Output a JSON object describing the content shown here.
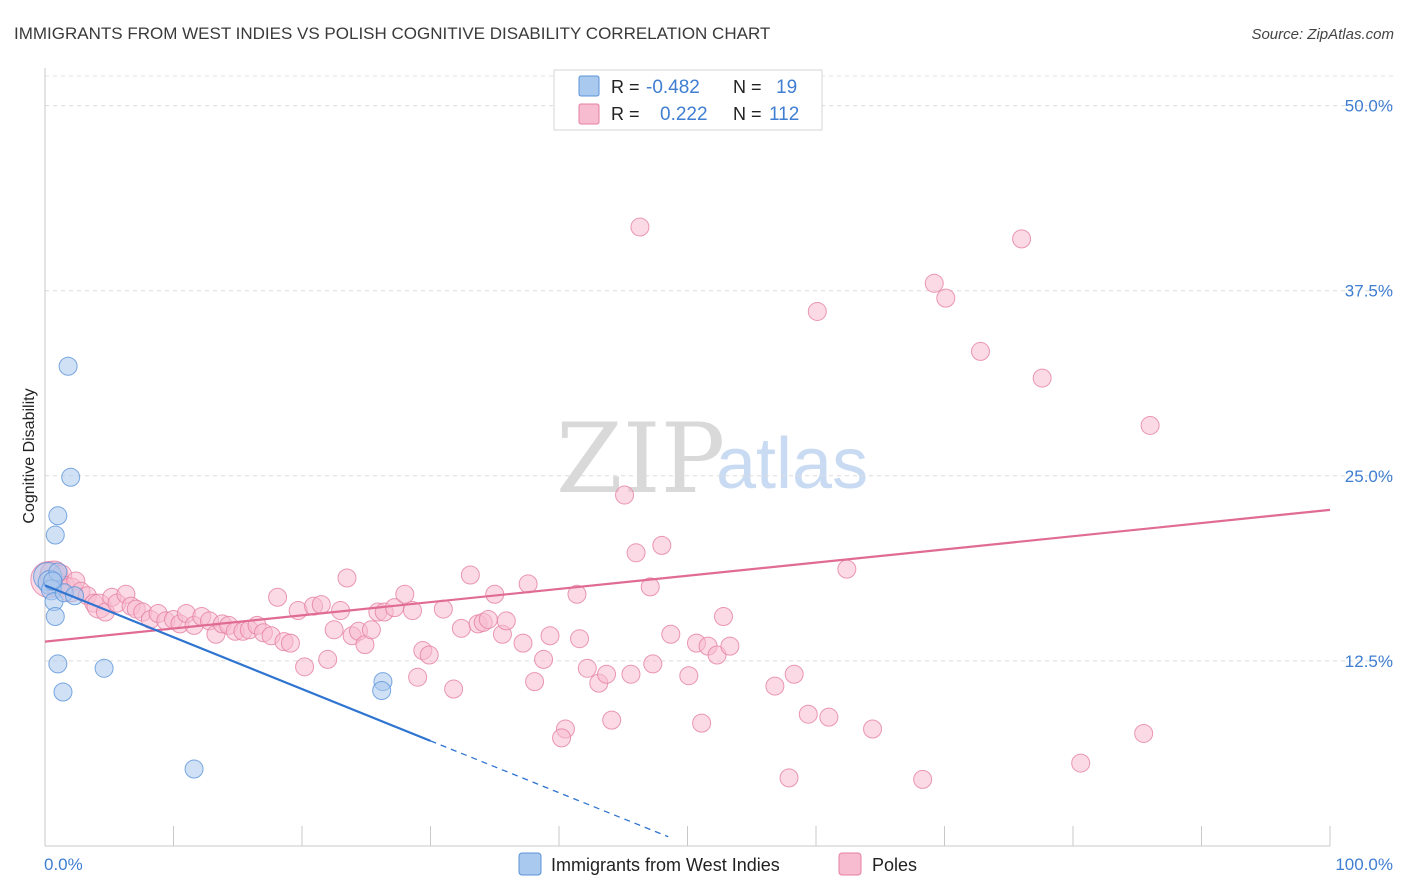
{
  "title": "IMMIGRANTS FROM WEST INDIES VS POLISH COGNITIVE DISABILITY CORRELATION CHART",
  "source": "Source: ZipAtlas.com",
  "watermark": {
    "zip": "ZIP",
    "atlas": "atlas"
  },
  "legend": {
    "rows": [
      {
        "r_label": "R =",
        "r_value": "-0.482",
        "n_label": "N =",
        "n_value": "19",
        "color": "#a9c9ef",
        "stroke": "#5b93d9"
      },
      {
        "r_label": "R =",
        "r_value": "0.222",
        "n_label": "N =",
        "n_value": "112",
        "color": "#f7bcd0",
        "stroke": "#e57fa3"
      }
    ]
  },
  "bottom_legend": {
    "items": [
      {
        "label": "Immigrants from West Indies",
        "color": "#a9c9ef",
        "stroke": "#5b93d9"
      },
      {
        "label": "Poles",
        "color": "#f7bcd0",
        "stroke": "#e57fa3"
      }
    ]
  },
  "chart_data": {
    "type": "scatter",
    "title": "IMMIGRANTS FROM WEST INDIES VS POLISH COGNITIVE DISABILITY CORRELATION CHART",
    "xlabel": "",
    "ylabel": "Cognitive Disability",
    "xlim": [
      0,
      100
    ],
    "ylim": [
      0,
      52
    ],
    "x_ticks_labels": [
      "0.0%",
      "100.0%"
    ],
    "y_ticks": [
      12.5,
      25.0,
      37.5,
      50.0
    ],
    "y_ticks_labels": [
      "12.5%",
      "25.0%",
      "37.5%",
      "50.0%"
    ],
    "grid": true,
    "colors": {
      "west_indies": "#5b93d9",
      "poles": "#e57fa3",
      "west_indies_line": "#2f74d0",
      "poles_line": "#e06b95"
    },
    "series": [
      {
        "name": "Immigrants from West Indies",
        "trend": {
          "x0": 0.0,
          "y0": 17.6,
          "x1": 30.0,
          "y1": 7.1,
          "dash_to_x": 48.5
        },
        "points": [
          [
            0.2,
            18.2,
            14
          ],
          [
            0.4,
            17.8,
            12
          ],
          [
            0.5,
            17.3,
            10
          ],
          [
            0.7,
            16.5,
            9
          ],
          [
            0.8,
            15.5,
            9
          ],
          [
            0.8,
            21.0,
            9
          ],
          [
            1.0,
            22.3,
            9
          ],
          [
            1.0,
            12.3,
            9
          ],
          [
            1.4,
            10.4,
            9
          ],
          [
            1.8,
            32.4,
            9
          ],
          [
            2.0,
            24.9,
            9
          ],
          [
            1.5,
            17.1,
            9
          ],
          [
            2.3,
            16.9,
            9
          ],
          [
            4.6,
            12.0,
            9
          ],
          [
            11.6,
            5.2,
            9
          ],
          [
            26.3,
            11.1,
            9
          ],
          [
            26.2,
            10.5,
            9
          ],
          [
            1.0,
            18.5,
            9
          ],
          [
            0.6,
            17.9,
            9
          ]
        ]
      },
      {
        "name": "Poles",
        "trend": {
          "x0": 0.0,
          "y0": 13.8,
          "x1": 100.0,
          "y1": 22.7
        },
        "points": [
          [
            0.3,
            18.0,
            18
          ],
          [
            0.7,
            18.3,
            14
          ],
          [
            1.0,
            17.6,
            12
          ],
          [
            1.3,
            18.3,
            10
          ],
          [
            1.6,
            17.6,
            9
          ],
          [
            2.0,
            17.3,
            12
          ],
          [
            2.4,
            17.9,
            9
          ],
          [
            2.8,
            17.2,
            9
          ],
          [
            3.3,
            16.9,
            9
          ],
          [
            3.8,
            16.4,
            9
          ],
          [
            4.2,
            16.2,
            12
          ],
          [
            4.7,
            15.8,
            9
          ],
          [
            5.2,
            16.8,
            9
          ],
          [
            5.6,
            16.4,
            9
          ],
          [
            6.3,
            17.0,
            9
          ],
          [
            6.7,
            16.2,
            9
          ],
          [
            7.1,
            16.0,
            9
          ],
          [
            7.6,
            15.8,
            9
          ],
          [
            8.2,
            15.3,
            9
          ],
          [
            8.8,
            15.7,
            9
          ],
          [
            9.4,
            15.2,
            9
          ],
          [
            10.0,
            15.3,
            9
          ],
          [
            10.5,
            15.0,
            9
          ],
          [
            11.0,
            15.7,
            9
          ],
          [
            11.6,
            14.9,
            9
          ],
          [
            12.2,
            15.5,
            9
          ],
          [
            12.8,
            15.2,
            9
          ],
          [
            13.3,
            14.3,
            9
          ],
          [
            13.8,
            15.0,
            9
          ],
          [
            14.3,
            14.9,
            9
          ],
          [
            14.8,
            14.5,
            9
          ],
          [
            15.4,
            14.5,
            9
          ],
          [
            15.9,
            14.6,
            9
          ],
          [
            16.5,
            14.9,
            9
          ],
          [
            17.0,
            14.4,
            9
          ],
          [
            17.6,
            14.2,
            9
          ],
          [
            18.1,
            16.8,
            9
          ],
          [
            18.6,
            13.8,
            9
          ],
          [
            19.1,
            13.7,
            9
          ],
          [
            19.7,
            15.9,
            9
          ],
          [
            20.2,
            12.1,
            9
          ],
          [
            20.9,
            16.2,
            9
          ],
          [
            21.5,
            16.3,
            9
          ],
          [
            22.0,
            12.6,
            9
          ],
          [
            22.5,
            14.6,
            9
          ],
          [
            23.0,
            15.9,
            9
          ],
          [
            23.5,
            18.1,
            9
          ],
          [
            23.9,
            14.2,
            9
          ],
          [
            24.4,
            14.5,
            9
          ],
          [
            24.9,
            13.6,
            9
          ],
          [
            25.4,
            14.6,
            9
          ],
          [
            25.9,
            15.8,
            9
          ],
          [
            26.4,
            15.8,
            9
          ],
          [
            27.2,
            16.1,
            9
          ],
          [
            28.0,
            17.0,
            9
          ],
          [
            28.6,
            15.9,
            9
          ],
          [
            29.0,
            11.4,
            9
          ],
          [
            29.4,
            13.2,
            9
          ],
          [
            29.9,
            12.9,
            9
          ],
          [
            31.0,
            16.0,
            9
          ],
          [
            31.8,
            10.6,
            9
          ],
          [
            32.4,
            14.7,
            9
          ],
          [
            33.1,
            18.3,
            9
          ],
          [
            33.7,
            15.0,
            9
          ],
          [
            34.1,
            15.1,
            9
          ],
          [
            34.5,
            15.3,
            9
          ],
          [
            35.0,
            17.0,
            9
          ],
          [
            35.6,
            14.3,
            9
          ],
          [
            35.9,
            15.2,
            9
          ],
          [
            37.2,
            13.7,
            9
          ],
          [
            37.6,
            17.7,
            9
          ],
          [
            38.1,
            11.1,
            9
          ],
          [
            38.8,
            12.6,
            9
          ],
          [
            39.3,
            14.2,
            9
          ],
          [
            40.5,
            7.9,
            9
          ],
          [
            40.2,
            7.3,
            9
          ],
          [
            41.4,
            17.0,
            9
          ],
          [
            41.6,
            14.0,
            9
          ],
          [
            42.2,
            12.0,
            9
          ],
          [
            43.1,
            11.0,
            9
          ],
          [
            43.7,
            11.6,
            9
          ],
          [
            44.1,
            8.5,
            9
          ],
          [
            45.1,
            23.7,
            9
          ],
          [
            45.6,
            11.6,
            9
          ],
          [
            46.0,
            19.8,
            9
          ],
          [
            46.3,
            41.8,
            9
          ],
          [
            47.1,
            17.5,
            9
          ],
          [
            47.3,
            12.3,
            9
          ],
          [
            48.0,
            20.3,
            9
          ],
          [
            48.7,
            14.3,
            9
          ],
          [
            50.1,
            11.5,
            9
          ],
          [
            50.7,
            13.7,
            9
          ],
          [
            51.1,
            8.3,
            9
          ],
          [
            51.6,
            13.5,
            9
          ],
          [
            52.3,
            12.9,
            9
          ],
          [
            52.8,
            15.5,
            9
          ],
          [
            53.3,
            13.5,
            9
          ],
          [
            56.8,
            10.8,
            9
          ],
          [
            57.9,
            4.6,
            9
          ],
          [
            58.3,
            11.6,
            9
          ],
          [
            59.4,
            8.9,
            9
          ],
          [
            60.1,
            36.1,
            9
          ],
          [
            61.0,
            8.7,
            9
          ],
          [
            62.4,
            18.7,
            9
          ],
          [
            64.4,
            7.9,
            9
          ],
          [
            68.3,
            4.5,
            9
          ],
          [
            69.2,
            38.0,
            9
          ],
          [
            70.1,
            37.0,
            9
          ],
          [
            72.8,
            33.4,
            9
          ],
          [
            76.0,
            41.0,
            9
          ],
          [
            77.6,
            31.6,
            9
          ],
          [
            80.6,
            5.6,
            9
          ],
          [
            85.5,
            7.6,
            9
          ],
          [
            86.0,
            28.4,
            9
          ]
        ]
      }
    ]
  }
}
